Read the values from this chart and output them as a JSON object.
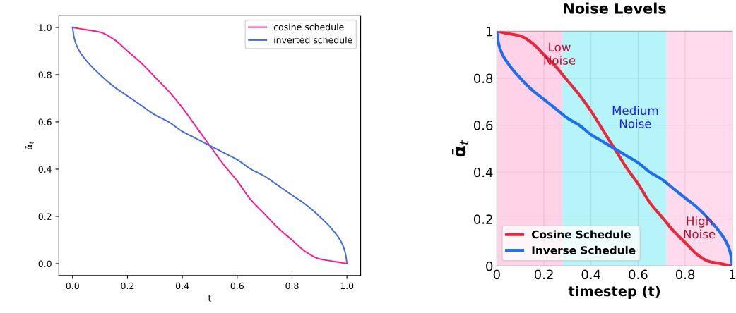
{
  "chart_data": [
    {
      "type": "line",
      "xlabel": "t",
      "ylabel": "ᾱ$_{t}$",
      "xlim": [
        -0.05,
        1.05
      ],
      "ylim": [
        -0.05,
        1.05
      ],
      "xticks": [
        {
          "value": 0,
          "label": "0.0"
        },
        0.2,
        0.4,
        0.6,
        0.8,
        {
          "value": 1,
          "label": "1.0"
        }
      ],
      "yticks": [
        {
          "value": 0,
          "label": "0.0"
        },
        0.2,
        0.4,
        0.6,
        0.8,
        {
          "value": 1,
          "label": "1.0"
        }
      ],
      "legend": "top right",
      "grid": false,
      "series": [
        {
          "name": "cosine schedule",
          "color": "#ff1493",
          "x": [
            0,
            0.05,
            0.1,
            0.15,
            0.2,
            0.25,
            0.3,
            0.35,
            0.4,
            0.45,
            0.5,
            0.55,
            0.6,
            0.65,
            0.7,
            0.75,
            0.8,
            0.85,
            0.9,
            0.95,
            1
          ],
          "values": [
            1,
            0.99,
            0.98,
            0.95,
            0.9,
            0.85,
            0.79,
            0.73,
            0.66,
            0.58,
            0.5,
            0.42,
            0.35,
            0.27,
            0.21,
            0.15,
            0.1,
            0.05,
            0.02,
            0.01,
            0
          ]
        },
        {
          "name": "inverted schedule",
          "color": "#4169e1",
          "x": [
            0,
            0.005,
            0.02,
            0.05,
            0.1,
            0.15,
            0.2,
            0.25,
            0.3,
            0.35,
            0.4,
            0.45,
            0.5,
            0.55,
            0.6,
            0.65,
            0.7,
            0.75,
            0.8,
            0.85,
            0.9,
            0.95,
            0.98,
            0.995,
            1
          ],
          "values": [
            1,
            0.96,
            0.91,
            0.86,
            0.8,
            0.75,
            0.71,
            0.67,
            0.63,
            0.6,
            0.56,
            0.53,
            0.5,
            0.47,
            0.44,
            0.4,
            0.37,
            0.33,
            0.29,
            0.25,
            0.2,
            0.14,
            0.09,
            0.04,
            0
          ]
        }
      ]
    },
    {
      "type": "line",
      "title": "Noise Levels",
      "xlabel": "timestep (t)",
      "ylabel": "ᾱ$_{t}$",
      "xlim": [
        0,
        1
      ],
      "ylim": [
        0,
        1
      ],
      "xticks": [
        0,
        0.2,
        0.4,
        0.6,
        0.8,
        1
      ],
      "yticks": [
        0,
        0.2,
        0.4,
        0.6,
        0.8,
        1
      ],
      "legend": "bottom left",
      "grid": true,
      "bands": [
        {
          "axis": "x",
          "from": 0,
          "to": 0.28,
          "label": "Low\nNoise",
          "color": "#ff9ccc"
        },
        {
          "axis": "x",
          "from": 0.28,
          "to": 0.72,
          "label": "Medium\nNoise",
          "color": "#5ce8f2"
        },
        {
          "axis": "x",
          "from": 0.72,
          "to": 1,
          "label": "High\nNoise",
          "color": "#ffb0d8"
        }
      ],
      "series": [
        {
          "name": "Cosine Schedule",
          "color": "#e8283c",
          "x": [
            0,
            0.05,
            0.1,
            0.15,
            0.2,
            0.25,
            0.3,
            0.35,
            0.4,
            0.45,
            0.5,
            0.55,
            0.6,
            0.65,
            0.7,
            0.75,
            0.8,
            0.85,
            0.9,
            0.95,
            1
          ],
          "values": [
            1,
            0.99,
            0.98,
            0.95,
            0.9,
            0.85,
            0.79,
            0.73,
            0.66,
            0.58,
            0.5,
            0.42,
            0.35,
            0.27,
            0.21,
            0.15,
            0.1,
            0.05,
            0.02,
            0.01,
            0
          ]
        },
        {
          "name": "Inverse Schedule",
          "color": "#1e6ff0",
          "x": [
            0,
            0.005,
            0.02,
            0.05,
            0.1,
            0.15,
            0.2,
            0.25,
            0.3,
            0.35,
            0.4,
            0.45,
            0.5,
            0.55,
            0.6,
            0.65,
            0.7,
            0.75,
            0.8,
            0.85,
            0.9,
            0.95,
            0.98,
            0.995,
            1
          ],
          "values": [
            1,
            0.96,
            0.91,
            0.86,
            0.8,
            0.75,
            0.71,
            0.67,
            0.63,
            0.6,
            0.56,
            0.53,
            0.5,
            0.47,
            0.44,
            0.4,
            0.37,
            0.33,
            0.29,
            0.25,
            0.2,
            0.14,
            0.09,
            0.04,
            0
          ]
        }
      ]
    }
  ]
}
